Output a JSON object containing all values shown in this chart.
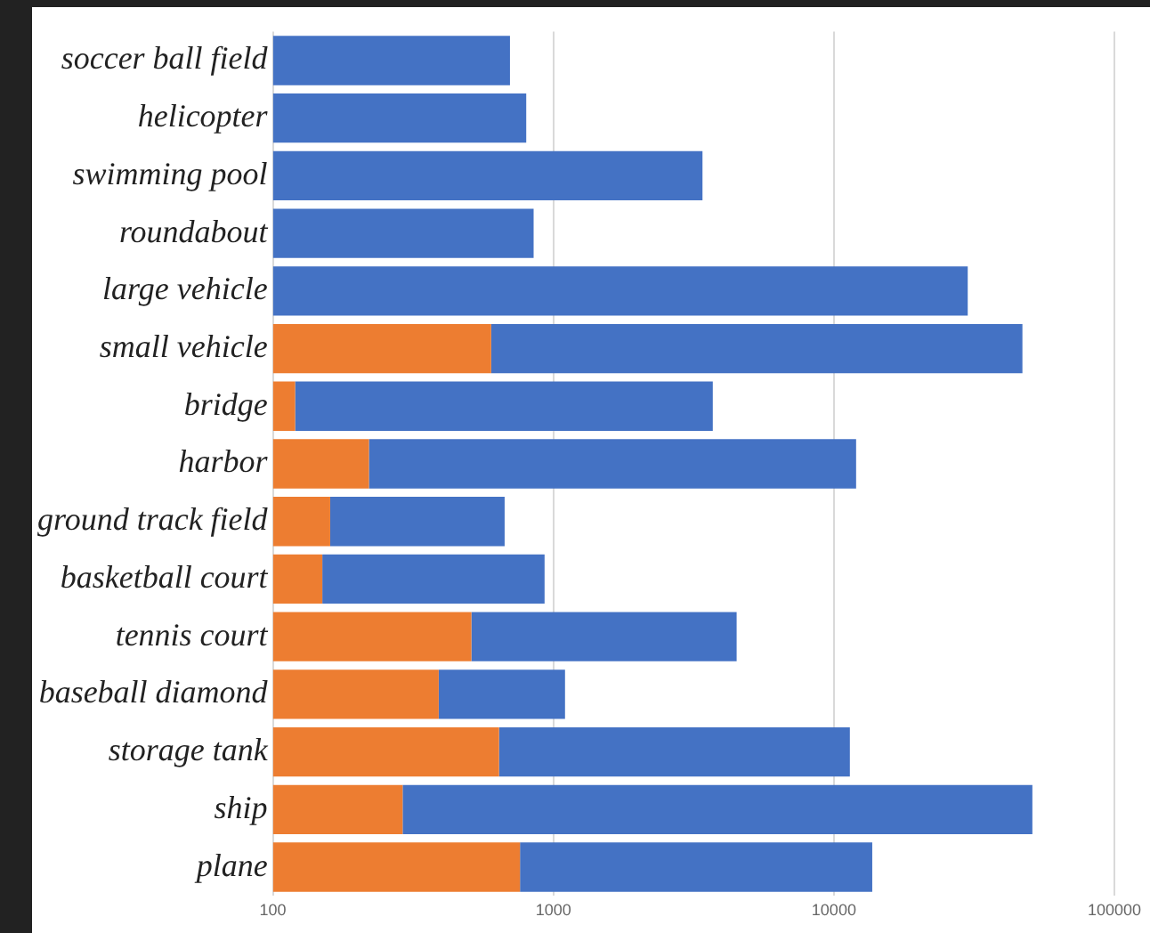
{
  "chart_data": {
    "type": "bar",
    "orientation": "horizontal",
    "log": "x",
    "stacked": true,
    "categories": [
      "soccer ball field",
      "helicopter",
      "swimming pool",
      "roundabout",
      "large vehicle",
      "small vehicle",
      "bridge",
      "harbor",
      "ground track field",
      "basketball court",
      "tennis court",
      "baseball diamond",
      "storage tank",
      "ship",
      "plane"
    ],
    "series": [
      {
        "color": "#ed7d31",
        "values": [
          null,
          null,
          null,
          null,
          null,
          600,
          120,
          220,
          160,
          150,
          510,
          390,
          640,
          290,
          760
        ]
      },
      {
        "color": "#4472c4",
        "values": [
          700,
          800,
          3400,
          850,
          30000,
          46400,
          3580,
          11780,
          510,
          780,
          3990,
          710,
          10760,
          50710,
          12940
        ]
      }
    ],
    "xlim": [
      100,
      100000
    ],
    "xticks": [
      100,
      1000,
      10000,
      100000
    ],
    "grid": "x",
    "legend": false
  }
}
